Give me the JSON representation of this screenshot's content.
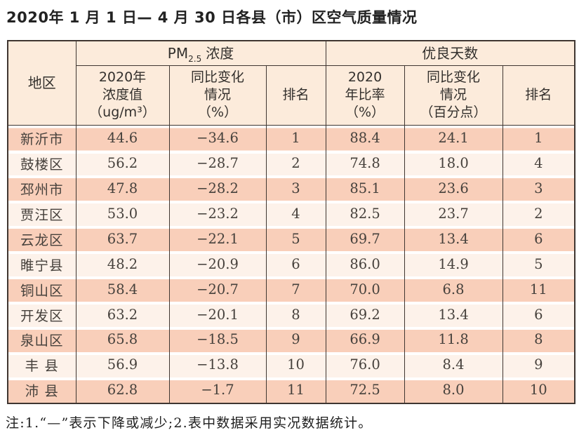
{
  "title": "2020年 1 月 1 日— 4 月 30 日各县（市）区空气质量情况",
  "note": "注:1.“—”表示下降或减少;2.表中数据采用实况数据统计。",
  "colors": {
    "row_odd": "#f9cfba",
    "row_even": "#fdf2ea",
    "header_bg": "#fcebdb",
    "border": "#3f3631"
  },
  "table": {
    "headers": {
      "region": "地区",
      "pm_group": {
        "base": "PM",
        "sub": "2.5",
        "rest": "浓度"
      },
      "good_group": "优良天数",
      "pm_value": [
        "2020年",
        "浓度值",
        "（ug/m³）"
      ],
      "pm_change": [
        "同比变化",
        "情况",
        "（%）"
      ],
      "good_ratio": [
        "2020",
        "年比率",
        "（%）"
      ],
      "good_change": [
        "同比变化",
        "情况",
        "（百分点）"
      ],
      "rank_label": "排名"
    },
    "rows": [
      {
        "region": "新沂市",
        "pm_value": "44.6",
        "pm_change": "−34.6",
        "pm_rank": "1",
        "good_ratio": "88.4",
        "good_change": "24.1",
        "good_rank": "1"
      },
      {
        "region": "鼓楼区",
        "pm_value": "56.2",
        "pm_change": "−28.7",
        "pm_rank": "2",
        "good_ratio": "74.8",
        "good_change": "18.0",
        "good_rank": "4"
      },
      {
        "region": "邳州市",
        "pm_value": "47.8",
        "pm_change": "−28.2",
        "pm_rank": "3",
        "good_ratio": "85.1",
        "good_change": "23.6",
        "good_rank": "3"
      },
      {
        "region": "贾汪区",
        "pm_value": "53.0",
        "pm_change": "−23.2",
        "pm_rank": "4",
        "good_ratio": "82.5",
        "good_change": "23.7",
        "good_rank": "2"
      },
      {
        "region": "云龙区",
        "pm_value": "63.7",
        "pm_change": "−22.1",
        "pm_rank": "5",
        "good_ratio": "69.7",
        "good_change": "13.4",
        "good_rank": "6"
      },
      {
        "region": "睢宁县",
        "pm_value": "48.2",
        "pm_change": "−20.9",
        "pm_rank": "6",
        "good_ratio": "86.0",
        "good_change": "14.9",
        "good_rank": "5"
      },
      {
        "region": "铜山区",
        "pm_value": "58.4",
        "pm_change": "−20.7",
        "pm_rank": "7",
        "good_ratio": "70.0",
        "good_change": "6.8",
        "good_rank": "11"
      },
      {
        "region": "开发区",
        "pm_value": "63.2",
        "pm_change": "−20.1",
        "pm_rank": "8",
        "good_ratio": "69.2",
        "good_change": "13.4",
        "good_rank": "6"
      },
      {
        "region": "泉山区",
        "pm_value": "65.8",
        "pm_change": "−18.5",
        "pm_rank": "9",
        "good_ratio": "66.9",
        "good_change": "11.8",
        "good_rank": "8"
      },
      {
        "region": "丰 县",
        "pm_value": "56.9",
        "pm_change": "−13.8",
        "pm_rank": "10",
        "good_ratio": "76.0",
        "good_change": "8.4",
        "good_rank": "9"
      },
      {
        "region": "沛 县",
        "pm_value": "62.8",
        "pm_change": "−1.7",
        "pm_rank": "11",
        "good_ratio": "72.5",
        "good_change": "8.0",
        "good_rank": "10"
      }
    ]
  },
  "chart_data": {
    "type": "table",
    "title": "2020年1月1日—4月30日各县（市）区空气质量情况",
    "column_groups": [
      "PM2.5浓度",
      "优良天数"
    ],
    "columns": [
      "地区",
      "PM2.5浓度 2020年浓度值（ug/m³）",
      "PM2.5浓度 同比变化情况（%）",
      "PM2.5浓度 排名",
      "优良天数 2020年比率（%）",
      "优良天数 同比变化情况（百分点）",
      "优良天数 排名"
    ],
    "rows": [
      [
        "新沂市",
        44.6,
        -34.6,
        1,
        88.4,
        24.1,
        1
      ],
      [
        "鼓楼区",
        56.2,
        -28.7,
        2,
        74.8,
        18.0,
        4
      ],
      [
        "邳州市",
        47.8,
        -28.2,
        3,
        85.1,
        23.6,
        3
      ],
      [
        "贾汪区",
        53.0,
        -23.2,
        4,
        82.5,
        23.7,
        2
      ],
      [
        "云龙区",
        63.7,
        -22.1,
        5,
        69.7,
        13.4,
        6
      ],
      [
        "睢宁县",
        48.2,
        -20.9,
        6,
        86.0,
        14.9,
        5
      ],
      [
        "铜山区",
        58.4,
        -20.7,
        7,
        70.0,
        6.8,
        11
      ],
      [
        "开发区",
        63.2,
        -20.1,
        8,
        69.2,
        13.4,
        6
      ],
      [
        "泉山区",
        65.8,
        -18.5,
        9,
        66.9,
        11.8,
        8
      ],
      [
        "丰县",
        56.9,
        -13.8,
        10,
        76.0,
        8.4,
        9
      ],
      [
        "沛县",
        62.8,
        -1.7,
        11,
        72.5,
        8.0,
        10
      ]
    ],
    "note": "注:1.“—”表示下降或减少;2.表中数据采用实况数据统计。"
  }
}
